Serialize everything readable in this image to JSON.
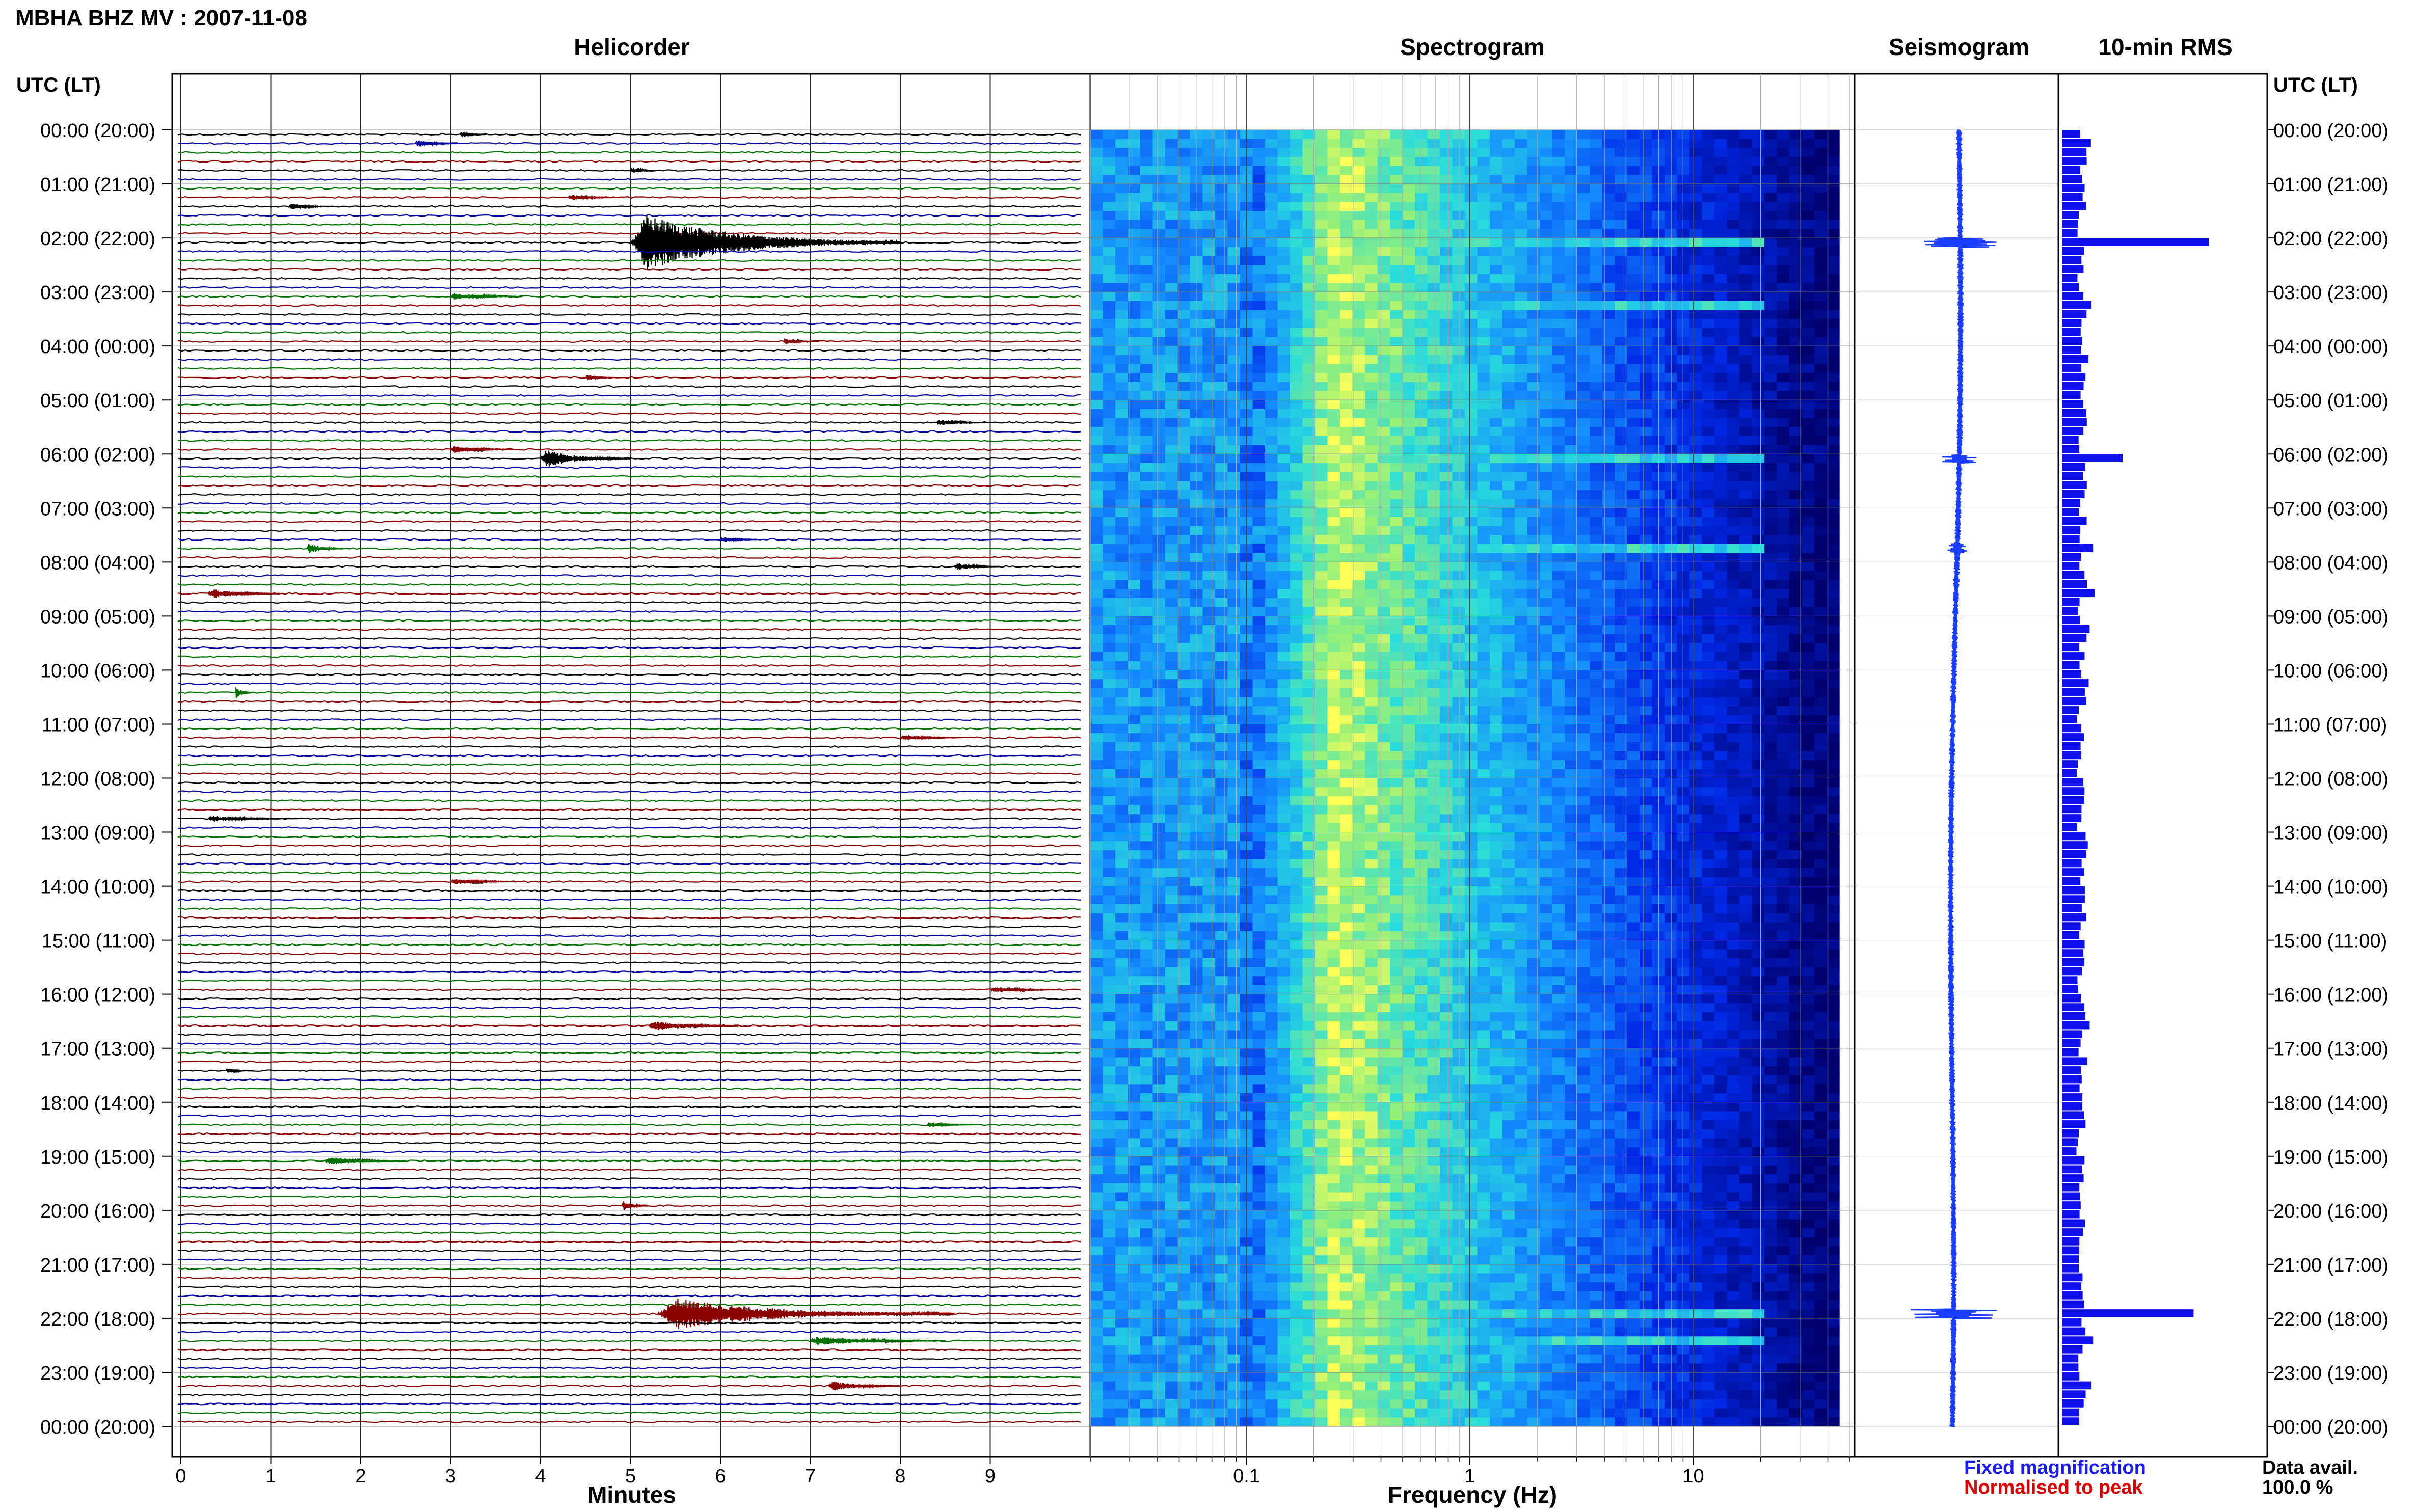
{
  "header": {
    "title": "MBHA BHZ MV : 2007-11-08"
  },
  "panels": {
    "helicorder": "Helicorder",
    "spectrogram": "Spectrogram",
    "seismogram": "Seismogram",
    "rms": "10-min RMS"
  },
  "axis_labels": {
    "time_left": "UTC (LT)",
    "time_right": "UTC (LT)",
    "minutes": "Minutes",
    "frequency": "Frequency (Hz)"
  },
  "legend": {
    "fixed": "Fixed magnification",
    "normalised": "Normalised to peak",
    "fixed_color": "#1a1aff",
    "normalised_color": "#e00000"
  },
  "data_avail": {
    "label": "Data avail.",
    "value": "100.0 %"
  },
  "colors": {
    "trace_cycle": [
      "#000000",
      "#0000a0",
      "#007000",
      "#8b0000"
    ],
    "rms_bar": "#1010ee",
    "seismogram": "#1a3cff",
    "spectrogram_low": "#00008b",
    "spectrogram_high": "#ffff60"
  },
  "chart_data": [
    {
      "type": "helicorder",
      "xlabel": "Minutes",
      "xlim": [
        0,
        10
      ],
      "x_ticks": [
        "0",
        "1",
        "2",
        "3",
        "4",
        "5",
        "6",
        "7",
        "8",
        "9"
      ],
      "time_labels": [
        "00:00 (20:00)",
        "01:00 (21:00)",
        "02:00 (22:00)",
        "03:00 (23:00)",
        "04:00 (00:00)",
        "05:00 (01:00)",
        "06:00 (02:00)",
        "07:00 (03:00)",
        "08:00 (04:00)",
        "09:00 (05:00)",
        "10:00 (06:00)",
        "11:00 (07:00)",
        "12:00 (08:00)",
        "13:00 (09:00)",
        "14:00 (10:00)",
        "15:00 (11:00)",
        "16:00 (12:00)",
        "17:00 (13:00)",
        "18:00 (14:00)",
        "19:00 (15:00)",
        "20:00 (16:00)",
        "21:00 (17:00)",
        "22:00 (18:00)",
        "23:00 (19:00)",
        "00:00 (20:00)"
      ],
      "lines_per_hour": 6,
      "line_count": 144,
      "events": [
        {
          "line": 0,
          "minute": 3.1,
          "dur": 0.3,
          "amp": 0.3
        },
        {
          "line": 1,
          "minute": 2.6,
          "dur": 0.5,
          "amp": 0.4
        },
        {
          "line": 4,
          "minute": 5.0,
          "dur": 0.3,
          "amp": 0.3
        },
        {
          "line": 7,
          "minute": 4.3,
          "dur": 0.6,
          "amp": 0.3
        },
        {
          "line": 8,
          "minute": 1.2,
          "dur": 0.5,
          "amp": 0.3
        },
        {
          "line": 12,
          "minute": 5.0,
          "dur": 3.0,
          "amp": 2.8
        },
        {
          "line": 18,
          "minute": 3.0,
          "dur": 0.8,
          "amp": 0.4
        },
        {
          "line": 23,
          "minute": 6.7,
          "dur": 0.4,
          "amp": 0.3
        },
        {
          "line": 27,
          "minute": 4.5,
          "dur": 0.3,
          "amp": 0.3
        },
        {
          "line": 32,
          "minute": 8.4,
          "dur": 0.6,
          "amp": 0.3
        },
        {
          "line": 35,
          "minute": 3.0,
          "dur": 0.7,
          "amp": 0.4
        },
        {
          "line": 36,
          "minute": 4.0,
          "dur": 1.0,
          "amp": 0.9
        },
        {
          "line": 45,
          "minute": 6.0,
          "dur": 0.4,
          "amp": 0.3
        },
        {
          "line": 46,
          "minute": 1.4,
          "dur": 0.4,
          "amp": 0.6
        },
        {
          "line": 48,
          "minute": 8.6,
          "dur": 0.5,
          "amp": 0.4
        },
        {
          "line": 51,
          "minute": 0.3,
          "dur": 0.8,
          "amp": 0.5
        },
        {
          "line": 62,
          "minute": 0.6,
          "dur": 0.2,
          "amp": 0.6
        },
        {
          "line": 67,
          "minute": 8.0,
          "dur": 0.7,
          "amp": 0.3
        },
        {
          "line": 76,
          "minute": 0.3,
          "dur": 1.0,
          "amp": 0.3
        },
        {
          "line": 83,
          "minute": 3.0,
          "dur": 0.8,
          "amp": 0.3
        },
        {
          "line": 95,
          "minute": 9.0,
          "dur": 0.8,
          "amp": 0.3
        },
        {
          "line": 99,
          "minute": 5.2,
          "dur": 1.0,
          "amp": 0.5
        },
        {
          "line": 104,
          "minute": 0.5,
          "dur": 0.3,
          "amp": 0.3
        },
        {
          "line": 110,
          "minute": 8.3,
          "dur": 0.5,
          "amp": 0.3
        },
        {
          "line": 114,
          "minute": 1.6,
          "dur": 0.9,
          "amp": 0.4
        },
        {
          "line": 119,
          "minute": 4.9,
          "dur": 0.3,
          "amp": 0.5
        },
        {
          "line": 131,
          "minute": 5.3,
          "dur": 3.3,
          "amp": 1.6
        },
        {
          "line": 134,
          "minute": 7.0,
          "dur": 1.5,
          "amp": 0.5
        },
        {
          "line": 139,
          "minute": 7.2,
          "dur": 0.8,
          "amp": 0.5
        }
      ]
    },
    {
      "type": "heatmap",
      "xlabel": "Frequency (Hz)",
      "x_scale": "log",
      "xlim": [
        0.02,
        50
      ],
      "x_ticks": [
        0.1,
        1,
        10
      ],
      "x_tick_labels": [
        "0.1",
        "1",
        "10"
      ],
      "band_peak_hz": 0.25,
      "rows": 144,
      "event_rows": [
        12,
        19,
        36,
        46,
        131,
        134
      ]
    },
    {
      "type": "line",
      "title": "Seismogram",
      "description_of_events": [
        12,
        36,
        46,
        131
      ],
      "event_rows": [
        12,
        36,
        46,
        131
      ],
      "event_amplitude": [
        1.0,
        0.3,
        0.2,
        0.7
      ]
    },
    {
      "type": "bar",
      "title": "10-min RMS",
      "rows": 144,
      "baseline": [
        0.12,
        0.14,
        0.13,
        0.12,
        0.11,
        0.1
      ],
      "peaks": [
        {
          "row": 12,
          "value": 0.85
        },
        {
          "row": 36,
          "value": 0.35
        },
        {
          "row": 19,
          "value": 0.17
        },
        {
          "row": 46,
          "value": 0.18
        },
        {
          "row": 49,
          "value": 0.13
        },
        {
          "row": 51,
          "value": 0.19
        },
        {
          "row": 99,
          "value": 0.16
        },
        {
          "row": 114,
          "value": 0.13
        },
        {
          "row": 131,
          "value": 0.76
        },
        {
          "row": 134,
          "value": 0.18
        },
        {
          "row": 139,
          "value": 0.17
        }
      ]
    }
  ]
}
